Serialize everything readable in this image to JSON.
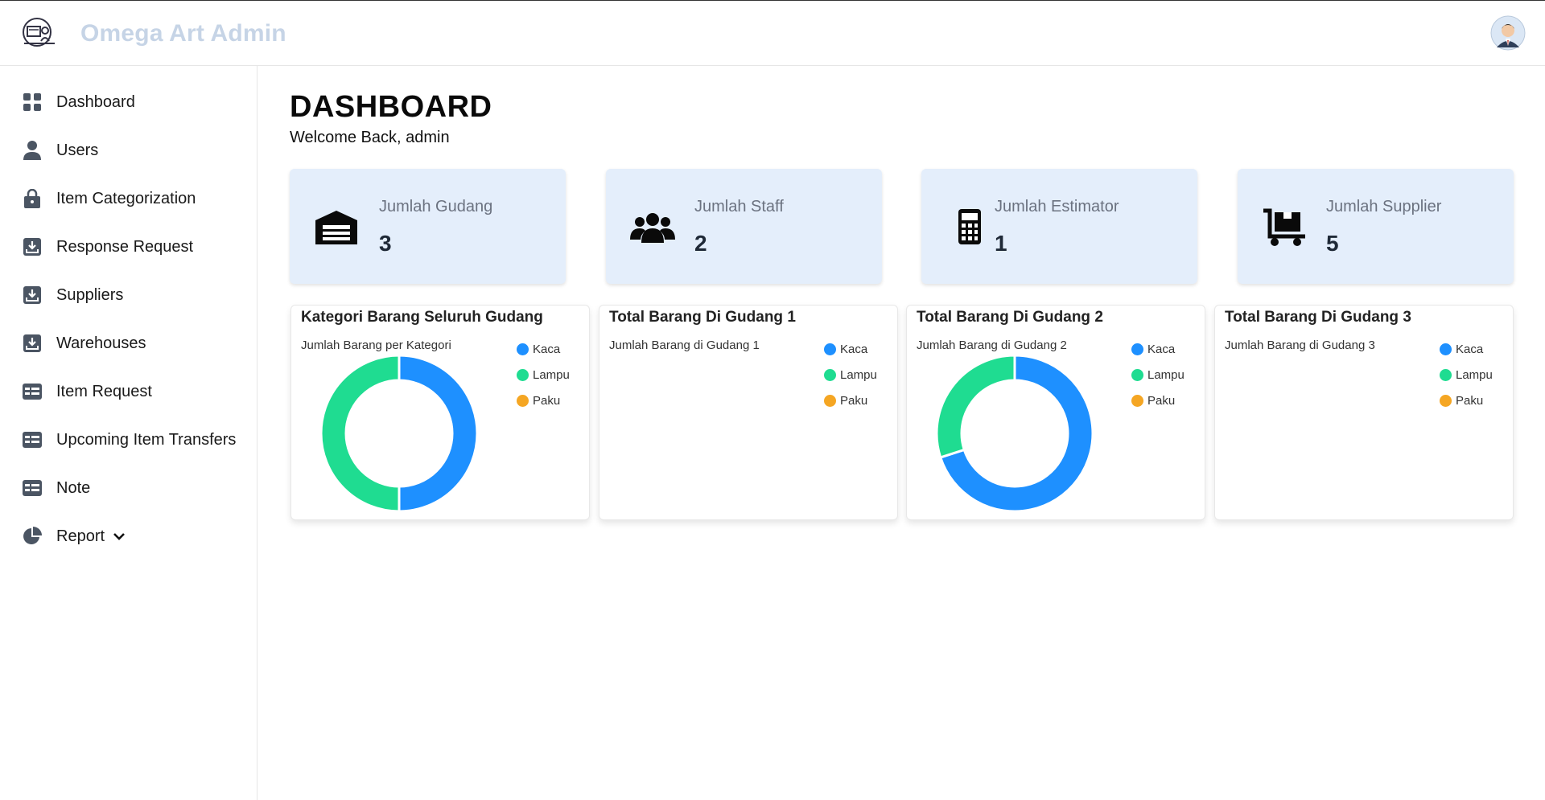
{
  "app": {
    "brand": "Omega Art Admin"
  },
  "sidebar": {
    "items": [
      {
        "label": "Dashboard",
        "icon": "dashboard-grid-icon"
      },
      {
        "label": "Users",
        "icon": "user-icon"
      },
      {
        "label": "Item Categorization",
        "icon": "lock-bag-icon"
      },
      {
        "label": "Response Request",
        "icon": "download-box-icon"
      },
      {
        "label": "Suppliers",
        "icon": "download-box-icon"
      },
      {
        "label": "Warehouses",
        "icon": "download-box-icon"
      },
      {
        "label": "Item Request",
        "icon": "card-list-icon"
      },
      {
        "label": "Upcoming Item Transfers",
        "icon": "card-list-icon"
      },
      {
        "label": "Note",
        "icon": "card-list-icon"
      },
      {
        "label": "Report",
        "icon": "pie-chart-icon"
      }
    ]
  },
  "main": {
    "title": "DASHBOARD",
    "welcome": "Welcome Back, admin"
  },
  "stats": [
    {
      "label": "Jumlah Gudang",
      "value": "3",
      "icon": "warehouse-icon"
    },
    {
      "label": "Jumlah Staff",
      "value": "2",
      "icon": "users-group-icon"
    },
    {
      "label": "Jumlah Estimator",
      "value": "1",
      "icon": "calculator-icon"
    },
    {
      "label": "Jumlah Supplier",
      "value": "5",
      "icon": "dolly-cart-icon"
    }
  ],
  "colors": {
    "kaca": "#1e90ff",
    "lampu": "#1fdc91",
    "paku": "#f5a623",
    "statBg": "#e4eefb"
  },
  "chart_data": [
    {
      "type": "pie",
      "title": "Kategori Barang Seluruh Gudang",
      "subtitle": "Jumlah Barang per Kategori",
      "legend": [
        "Kaca",
        "Lampu",
        "Paku"
      ],
      "values": [
        50,
        50,
        0
      ]
    },
    {
      "type": "pie",
      "title": "Total Barang Di Gudang 1",
      "subtitle": "Jumlah Barang di Gudang 1",
      "legend": [
        "Kaca",
        "Lampu",
        "Paku"
      ],
      "values": [
        0,
        0,
        0
      ]
    },
    {
      "type": "pie",
      "title": "Total Barang Di Gudang 2",
      "subtitle": "Jumlah Barang di Gudang 2",
      "legend": [
        "Kaca",
        "Lampu",
        "Paku"
      ],
      "values": [
        70,
        30,
        0
      ]
    },
    {
      "type": "pie",
      "title": "Total Barang Di Gudang 3",
      "subtitle": "Jumlah Barang di Gudang 3",
      "legend": [
        "Kaca",
        "Lampu",
        "Paku"
      ],
      "values": [
        0,
        0,
        0
      ]
    }
  ]
}
